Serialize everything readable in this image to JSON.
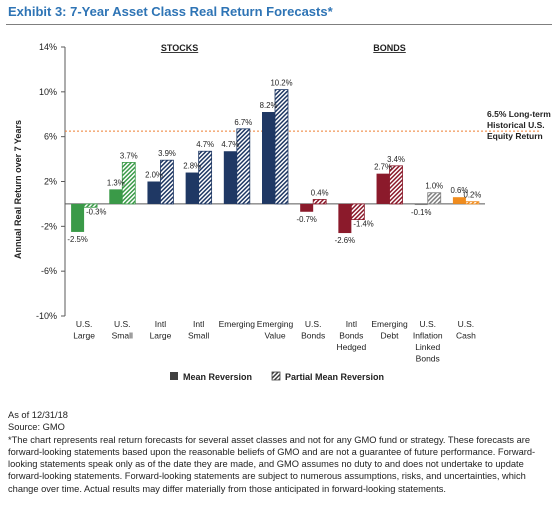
{
  "title": "Exhibit 3: 7-Year Asset Class Real Return Forecasts*",
  "chart_data": {
    "type": "bar",
    "ylabel": "Annual Real Return over 7 Years",
    "ylim": [
      -10,
      14
    ],
    "yticks": [
      "14%",
      "10%",
      "6%",
      "2%",
      "-2%",
      "-6%",
      "-10%"
    ],
    "ytick_values": [
      14,
      10,
      6,
      2,
      -2,
      -6,
      -10
    ],
    "groups": [
      {
        "label": "STOCKS",
        "first": 0,
        "last": 5
      },
      {
        "label": "BONDS",
        "first": 6,
        "last": 10
      }
    ],
    "categories": [
      [
        "U.S.",
        "Large"
      ],
      [
        "U.S.",
        "Small"
      ],
      [
        "Intl",
        "Large"
      ],
      [
        "Intl",
        "Small"
      ],
      [
        "Emerging"
      ],
      [
        "Emerging",
        "Value"
      ],
      [
        "U.S.",
        "Bonds"
      ],
      [
        "Intl",
        "Bonds",
        "Hedged"
      ],
      [
        "Emerging",
        "Debt"
      ],
      [
        "U.S.",
        "Inflation",
        "Linked",
        "Bonds"
      ],
      [
        "U.S.",
        "Cash"
      ]
    ],
    "series": [
      {
        "name": "Mean Reversion",
        "values": [
          -2.5,
          1.3,
          2.0,
          2.8,
          4.7,
          8.2,
          -0.7,
          -2.6,
          2.7,
          -0.1,
          0.6
        ]
      },
      {
        "name": "Partial Mean Reversion",
        "values": [
          -0.3,
          3.7,
          3.9,
          4.7,
          6.7,
          10.2,
          0.4,
          -1.4,
          3.4,
          1.0,
          0.2
        ]
      }
    ],
    "value_labels": {
      "Mean Reversion": [
        "-2.5%",
        "1.3%",
        "2.0%",
        "2.8%",
        "4.7%",
        "8.2%",
        "-0.7%",
        "-2.6%",
        "2.7%",
        "-0.1%",
        "0.6%"
      ],
      "Partial Mean Reversion": [
        "-0.3%",
        "3.7%",
        "3.9%",
        "4.7%",
        "6.7%",
        "10.2%",
        "0.4%",
        "-1.4%",
        "3.4%",
        "1.0%",
        "0.2%"
      ]
    },
    "bar_colors": [
      "#3a9a48",
      "#3a9a48",
      "#1f3864",
      "#1f3864",
      "#1f3864",
      "#1f3864",
      "#8b1a2b",
      "#8b1a2b",
      "#8b1a2b",
      "#7f7f7f",
      "#f08c1e"
    ],
    "reference_line": {
      "value": 6.5,
      "color": "#ed7d31",
      "label": [
        "6.5% Long-term",
        "Historical U.S.",
        "Equity Return"
      ]
    },
    "legend": {
      "position": "bottom"
    }
  },
  "notes": [
    "As of 12/31/18",
    "Source: GMO",
    "*The chart represents real return forecasts for several asset classes and not for any GMO fund or strategy. These forecasts are forward-looking statements based upon the reasonable beliefs of GMO and are not a guarantee of future performance. Forward-looking statements speak only as of the date they are made, and GMO assumes no duty to and does not undertake to update forward-looking statements. Forward-looking statements are subject to numerous assumptions, risks, and uncertainties, which change over time. Actual results may differ materially from those anticipated in forward-looking statements."
  ]
}
